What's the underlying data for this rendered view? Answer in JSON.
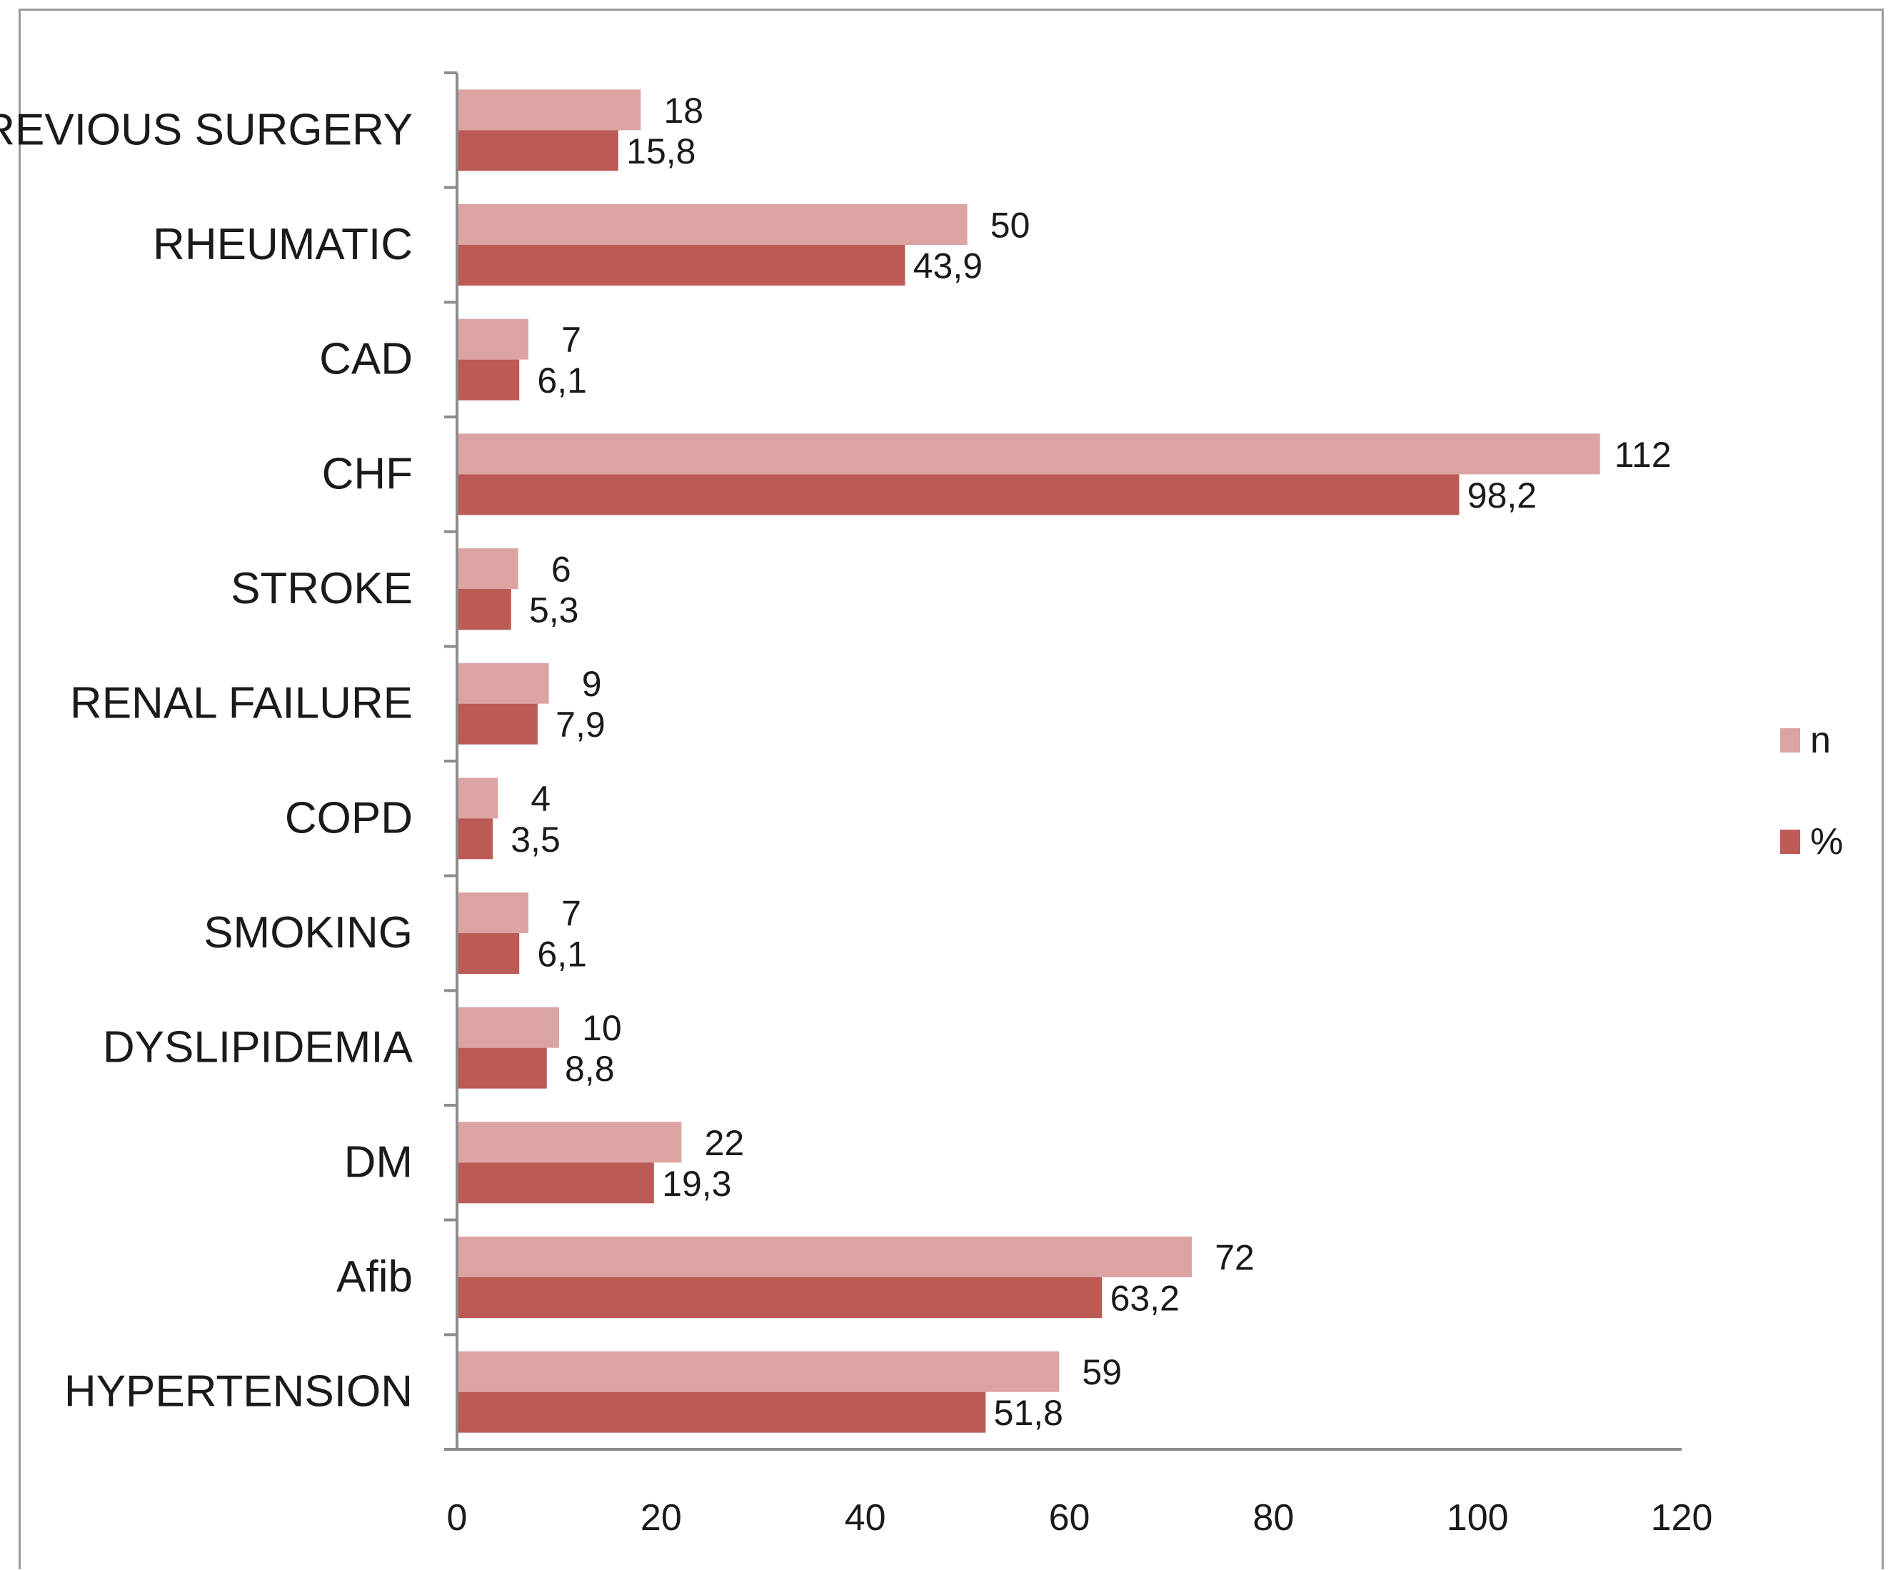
{
  "chart_data": {
    "type": "bar",
    "orientation": "horizontal",
    "title": "",
    "xlabel": "",
    "ylabel": "",
    "categories": [
      "PREVIOUS SURGERY",
      "RHEUMATIC",
      "CAD",
      "CHF",
      "STROKE",
      "RENAL FAILURE",
      "COPD",
      "SMOKING",
      "DYSLIPIDEMIA",
      "DM",
      "Afib",
      "HYPERTENSION"
    ],
    "value_labels": {
      "n": [
        "18",
        "50",
        "7",
        "112",
        "6",
        "9",
        "4",
        "7",
        "10",
        "22",
        "72",
        "59"
      ],
      "%": [
        "15,8",
        "43,9",
        "6,1",
        "98,2",
        "5,3",
        "7,9",
        "3,5",
        "6,1",
        "8,8",
        "19,3",
        "63,2",
        "51,8"
      ]
    },
    "series": [
      {
        "name": "n",
        "color": "#dca3a3",
        "values": [
          18,
          50,
          7,
          112,
          6,
          9,
          4,
          7,
          10,
          22,
          72,
          59
        ]
      },
      {
        "name": "%",
        "color": "#bc5a55",
        "values": [
          15.8,
          43.9,
          6.1,
          98.2,
          5.3,
          7.9,
          3.5,
          6.1,
          8.8,
          19.3,
          63.2,
          51.8
        ]
      }
    ],
    "xlim": [
      0,
      120
    ],
    "xticks": [
      "0",
      "20",
      "40",
      "60",
      "80",
      "100",
      "120"
    ],
    "grid": false,
    "legend_position": "right"
  }
}
